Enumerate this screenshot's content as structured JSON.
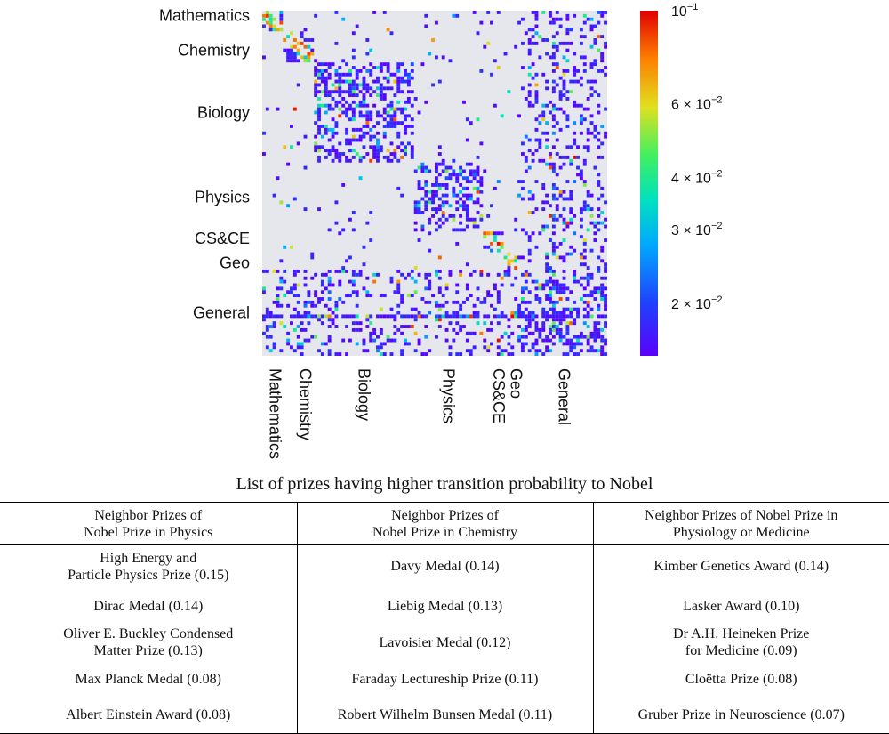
{
  "chart_data": {
    "type": "heatmap",
    "matrix_size": 100,
    "color_scale": "log",
    "colormap": "rainbow",
    "background_color": "#e6e6ed",
    "blocks": [
      {
        "name": "Mathematics",
        "start": 0,
        "end": 5
      },
      {
        "name": "Chemistry",
        "start": 6,
        "end": 14
      },
      {
        "name": "Biology",
        "start": 15,
        "end": 43
      },
      {
        "name": "Physics",
        "start": 44,
        "end": 63
      },
      {
        "name": "CS&CE",
        "start": 64,
        "end": 69
      },
      {
        "name": "Geo",
        "start": 70,
        "end": 74
      },
      {
        "name": "General",
        "start": 75,
        "end": 99
      }
    ],
    "y_labels": [
      "Mathematics",
      "Chemistry",
      "Biology",
      "Physics",
      "CS&CE",
      "Geo",
      "General"
    ],
    "x_labels": [
      "Mathematics",
      "Chemistry",
      "Biology",
      "Physics",
      "CS&CE",
      "Geo",
      "General"
    ],
    "colorbar": {
      "range": [
        0.015,
        0.1
      ],
      "ticks": [
        {
          "value": 0.1,
          "mantissa": "",
          "exponent": "−1"
        },
        {
          "value": 0.06,
          "mantissa": "6 × ",
          "exponent": "−2"
        },
        {
          "value": 0.04,
          "mantissa": "4 × ",
          "exponent": "−2"
        },
        {
          "value": 0.03,
          "mantissa": "3 × ",
          "exponent": "−2"
        },
        {
          "value": 0.02,
          "mantissa": "2 × ",
          "exponent": "−2"
        }
      ],
      "base": "10"
    }
  },
  "table": {
    "title": "List of prizes having higher transition probability to Nobel",
    "headers": [
      "Neighbor Prizes of\nNobel Prize in Physics",
      "Neighbor Prizes of\nNobel Prize in Chemistry",
      "Neighbor Prizes of Nobel Prize in\nPhysiology or Medicine"
    ],
    "rows": [
      [
        "High Energy and\nParticle Physics Prize (0.15)",
        "Davy Medal (0.14)",
        "Kimber Genetics Award (0.14)"
      ],
      [
        "Dirac Medal (0.14)",
        "Liebig Medal (0.13)",
        "Lasker Award (0.10)"
      ],
      [
        "Oliver E. Buckley Condensed\nMatter Prize (0.13)",
        "Lavoisier Medal (0.12)",
        "Dr A.H. Heineken Prize\nfor Medicine (0.09)"
      ],
      [
        "Max Planck Medal (0.08)",
        "Faraday Lectureship Prize (0.11)",
        "Cloëtta Prize (0.08)"
      ],
      [
        "Albert Einstein Award (0.08)",
        "Robert Wilhelm Bunsen Medal (0.11)",
        "Gruber Prize in Neuroscience (0.07)"
      ]
    ]
  }
}
